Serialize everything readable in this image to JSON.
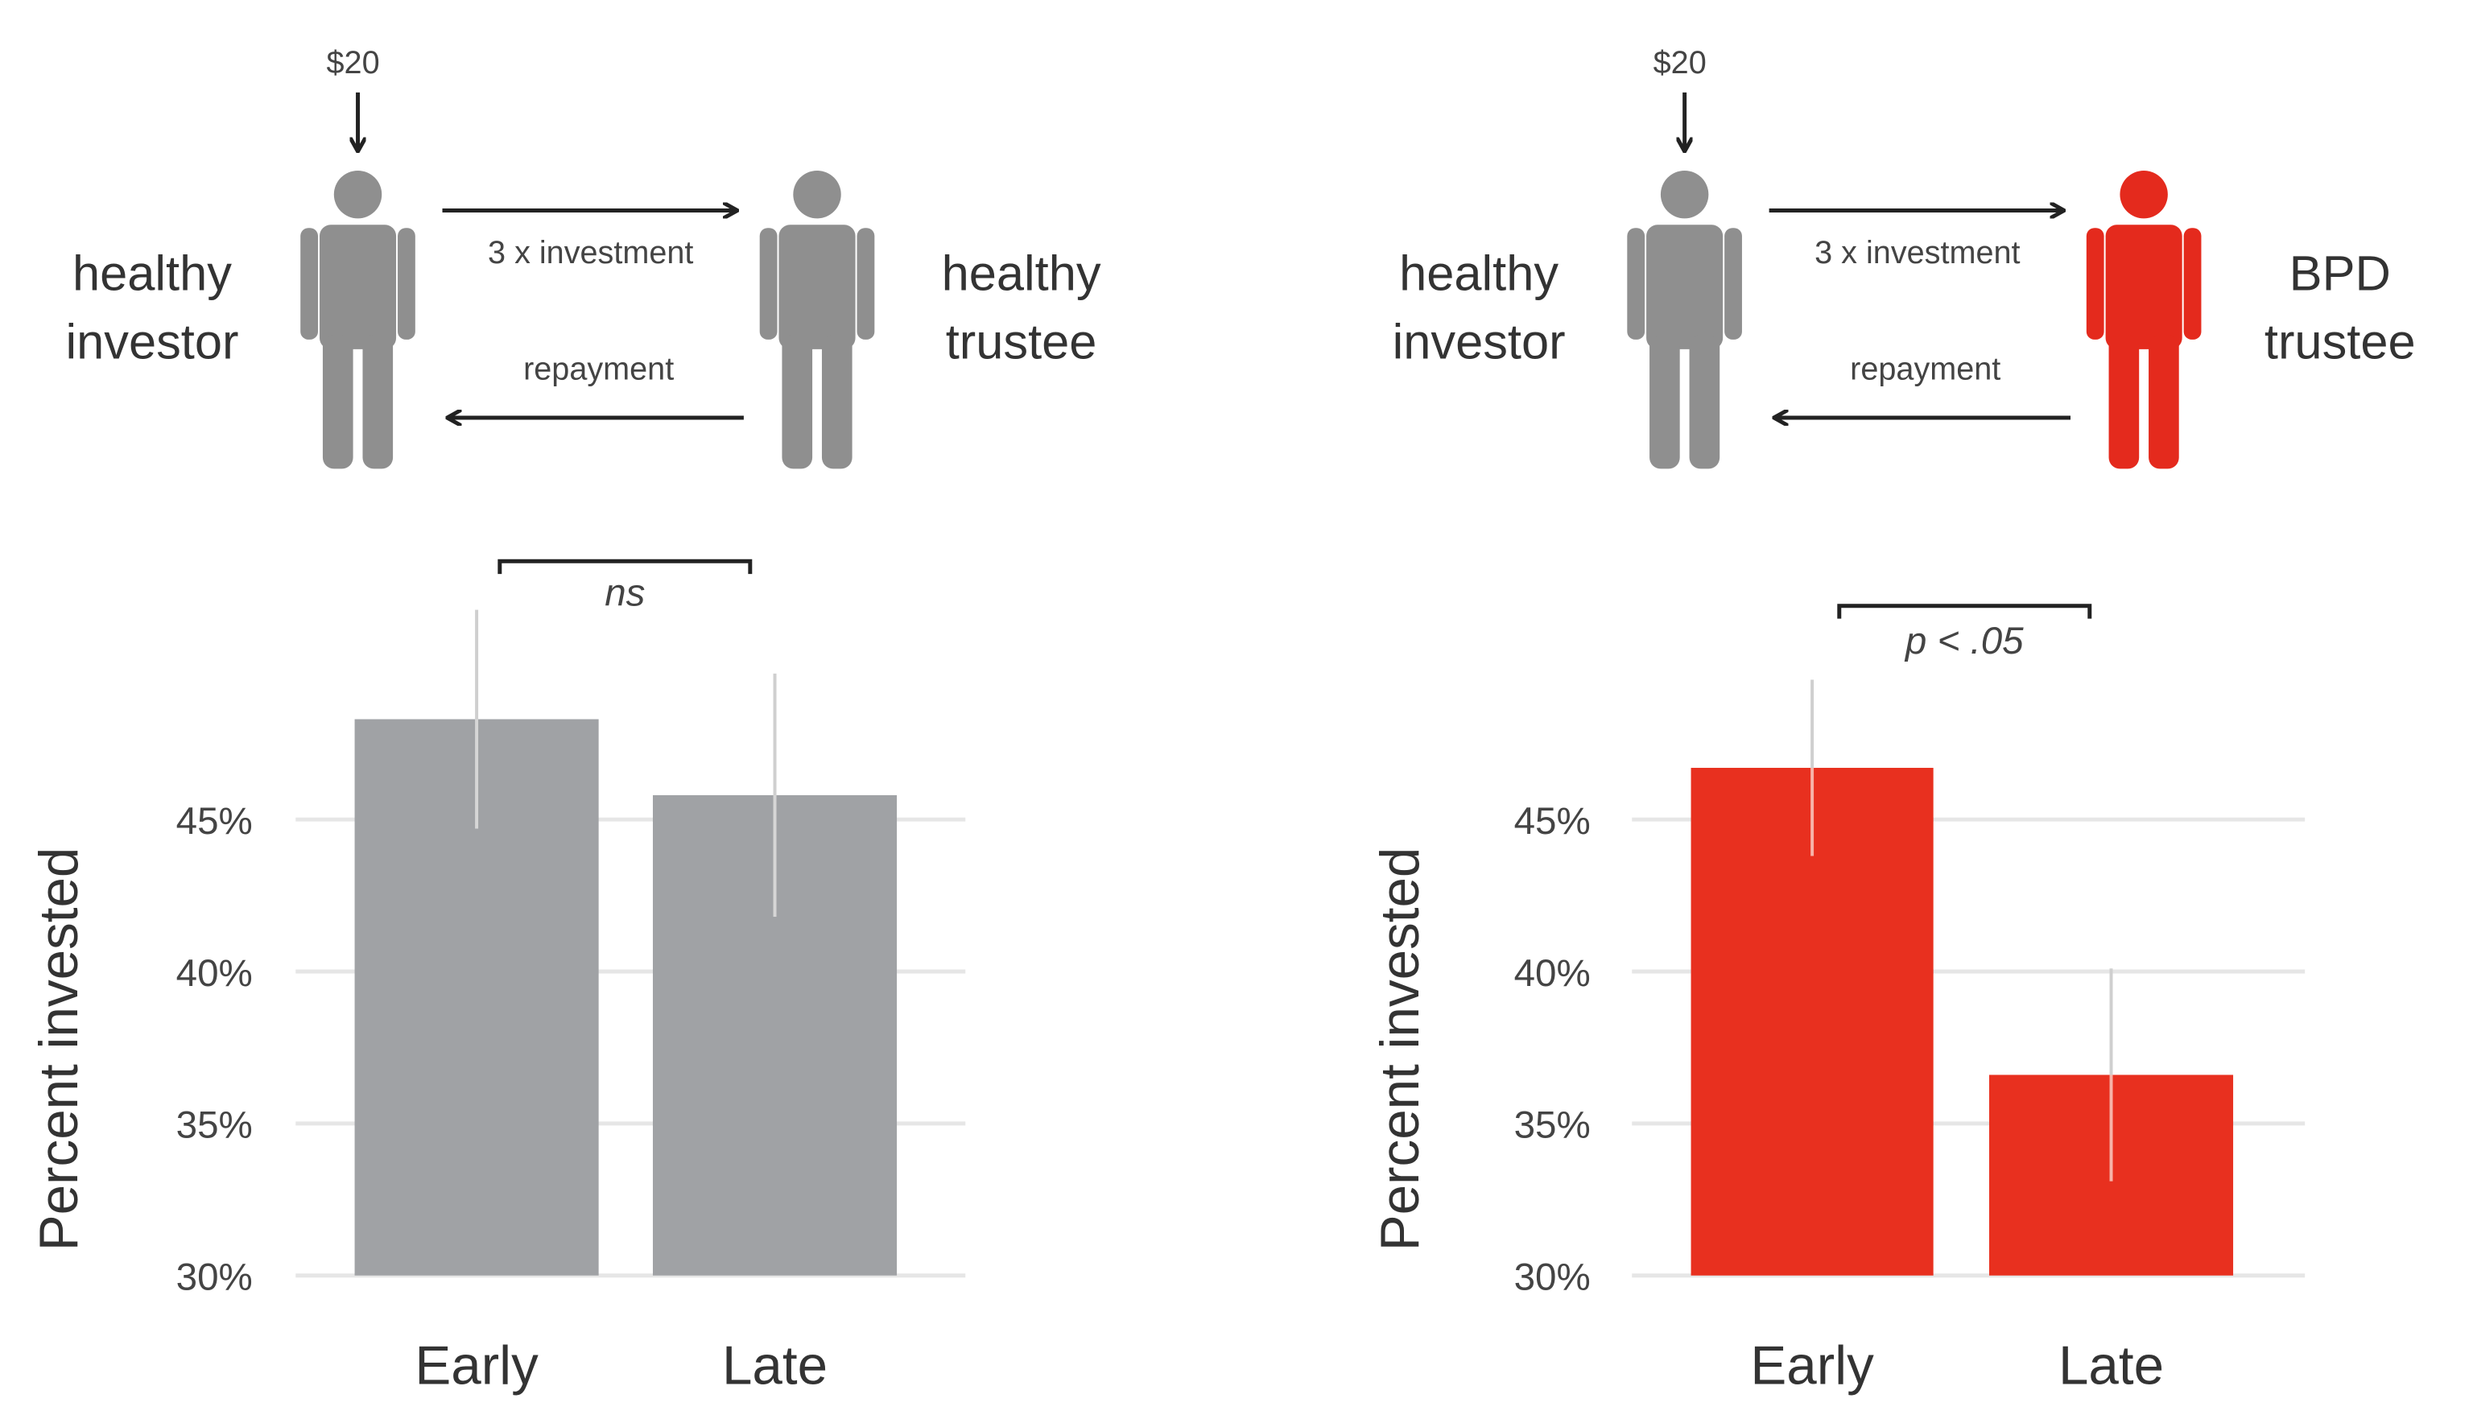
{
  "colors": {
    "gray": "#a0a2a5",
    "red": "#e8301f",
    "person_gray": "#8f8f8f",
    "person_red": "#e42a1d"
  },
  "panels": [
    {
      "amount": "$20",
      "investor_label": [
        "healthy",
        "investor"
      ],
      "trustee_label": [
        "healthy",
        "trustee"
      ],
      "forward_label": "3 x investment",
      "back_label": "repayment",
      "trustee_color": "person_gray"
    },
    {
      "amount": "$20",
      "investor_label": [
        "healthy",
        "investor"
      ],
      "trustee_label": [
        "BPD",
        "trustee"
      ],
      "forward_label": "3 x investment",
      "back_label": "repayment",
      "trustee_color": "person_red"
    }
  ],
  "chart_data": [
    {
      "type": "bar",
      "title": "healthy investor - healthy trustee",
      "categories": [
        "Early",
        "Late"
      ],
      "values": [
        48.3,
        45.8
      ],
      "error": [
        3.6,
        4.0
      ],
      "ylabel": "Percent invested",
      "xlabel": "",
      "ylim": [
        30,
        50
      ],
      "yticks": [
        30,
        35,
        40,
        45
      ],
      "ytick_labels": [
        "30%",
        "35%",
        "40%",
        "45%"
      ],
      "grid": true,
      "bar_color": "gray",
      "annotation": "ns"
    },
    {
      "type": "bar",
      "title": "healthy investor - BPD trustee",
      "categories": [
        "Early",
        "Late"
      ],
      "values": [
        46.7,
        36.6
      ],
      "error": [
        2.9,
        3.5
      ],
      "ylabel": "Percent invested",
      "xlabel": "",
      "ylim": [
        30,
        50
      ],
      "yticks": [
        30,
        35,
        40,
        45
      ],
      "ytick_labels": [
        "30%",
        "35%",
        "40%",
        "45%"
      ],
      "grid": true,
      "bar_color": "red",
      "annotation": "p < .05"
    }
  ]
}
